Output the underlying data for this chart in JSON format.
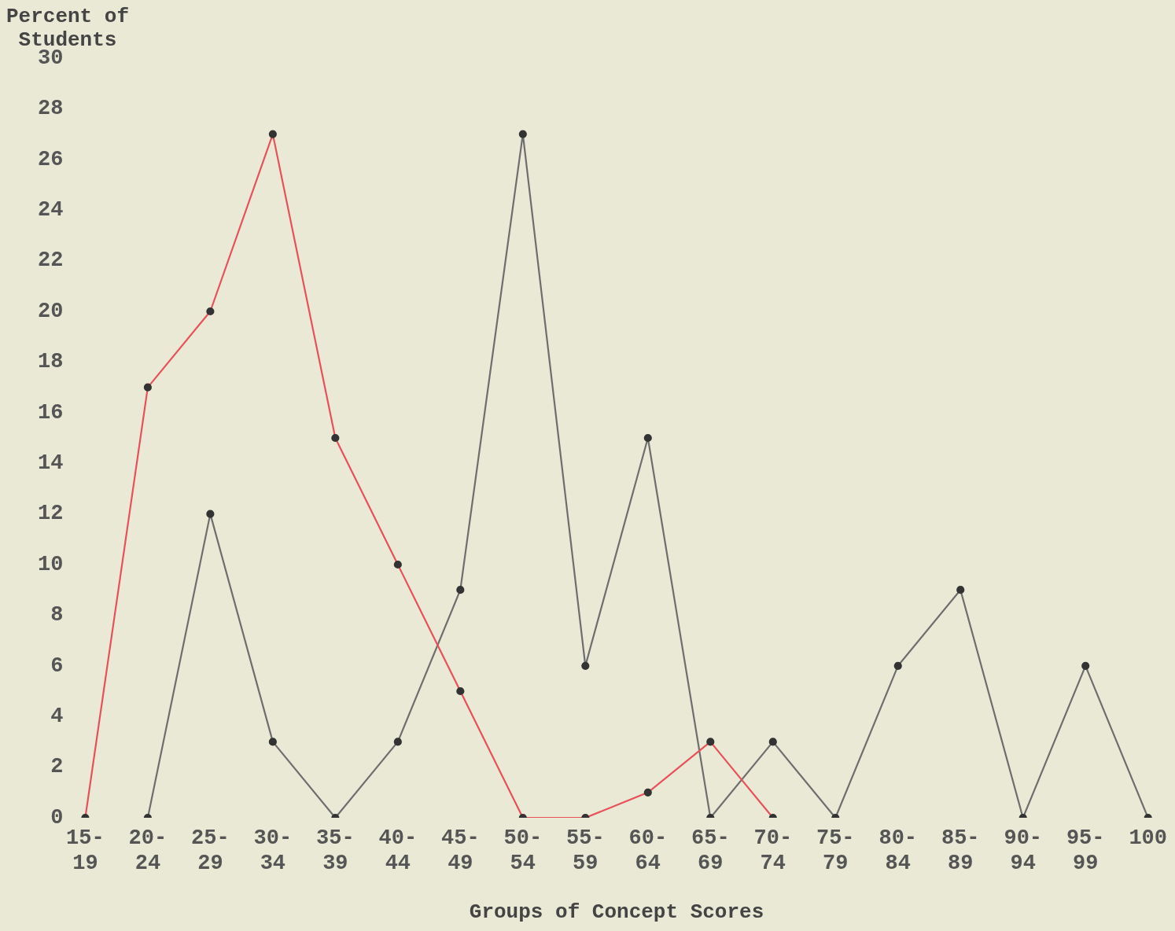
{
  "chart_data": {
    "type": "line",
    "xlabel": "Groups of Concept Scores",
    "ylabel": "Percent of Students",
    "categories": [
      "15-19",
      "20-24",
      "25-29",
      "30-34",
      "35-39",
      "40-44",
      "45-49",
      "50-54",
      "55-59",
      "60-64",
      "65-69",
      "70-74",
      "75-79",
      "80-84",
      "85-89",
      "90-94",
      "95-99",
      "100"
    ],
    "series": [
      {
        "color": "#e8505a",
        "values": [
          0,
          17,
          20,
          27,
          15,
          10,
          5,
          0,
          0,
          1,
          3,
          0,
          null,
          null,
          null,
          null,
          null,
          null
        ]
      },
      {
        "color": "#6e6e6e",
        "values": [
          null,
          0,
          12,
          3,
          0,
          3,
          9,
          27,
          6,
          15,
          0,
          3,
          0,
          6,
          9,
          0,
          6,
          0
        ]
      }
    ],
    "ylim": [
      0,
      30
    ],
    "yticks": [
      0,
      2,
      4,
      6,
      8,
      10,
      12,
      14,
      16,
      18,
      20,
      22,
      24,
      26,
      28,
      30
    ],
    "grid": false,
    "legend": false,
    "marker": "circle",
    "line_style": "solid"
  }
}
